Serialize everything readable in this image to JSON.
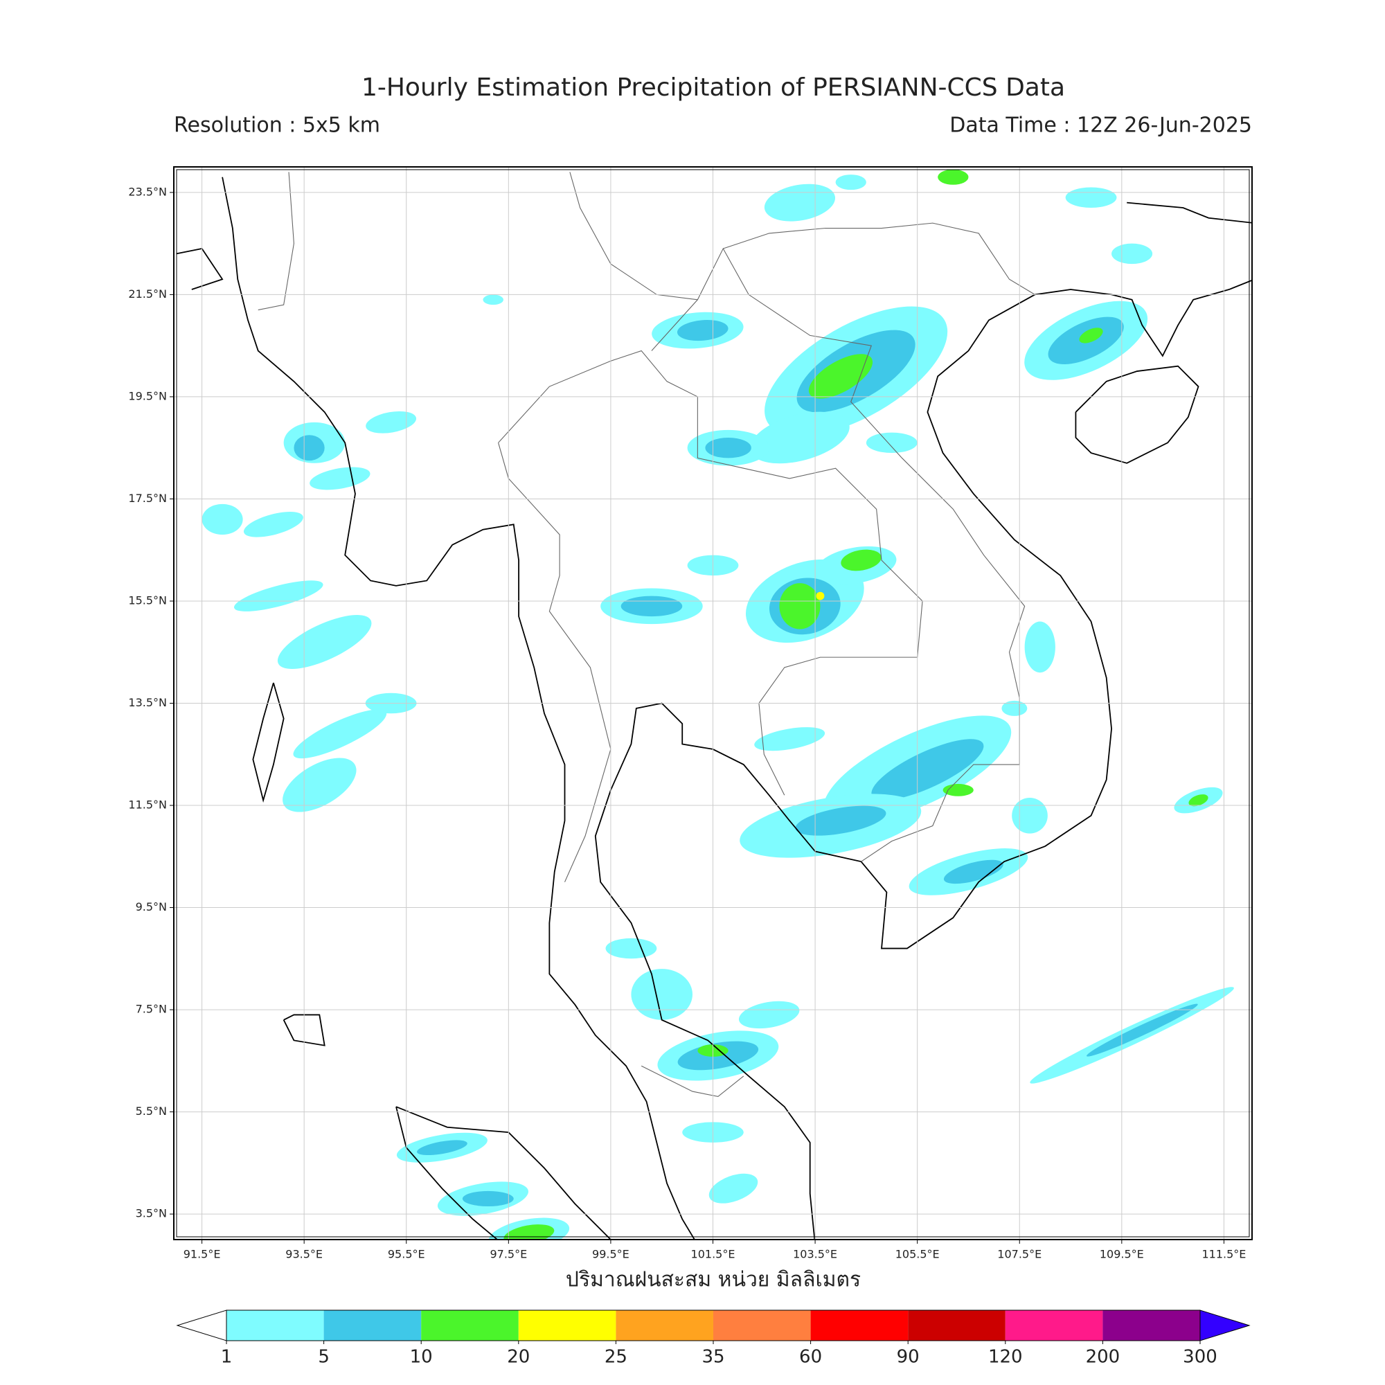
{
  "header": {
    "title": "1-Hourly Estimation Precipitation of PERSIANN-CCS Data",
    "resolution": "Resolution : 5x5 km",
    "data_time": "Data Time : 12Z 26-Jun-2025"
  },
  "map": {
    "lonlim": [
      90.95,
      112.05
    ],
    "latlim": [
      3.0,
      24.0
    ],
    "lon_ticks": [
      {
        "value": 91.5,
        "label": "91.5°E"
      },
      {
        "value": 93.5,
        "label": "93.5°E"
      },
      {
        "value": 95.5,
        "label": "95.5°E"
      },
      {
        "value": 97.5,
        "label": "97.5°E"
      },
      {
        "value": 99.5,
        "label": "99.5°E"
      },
      {
        "value": 101.5,
        "label": "101.5°E"
      },
      {
        "value": 103.5,
        "label": "103.5°E"
      },
      {
        "value": 105.5,
        "label": "105.5°E"
      },
      {
        "value": 107.5,
        "label": "107.5°E"
      },
      {
        "value": 109.5,
        "label": "109.5°E"
      },
      {
        "value": 111.5,
        "label": "111.5°E"
      }
    ],
    "lat_ticks": [
      {
        "value": 23.5,
        "label": "23.5°N"
      },
      {
        "value": 21.5,
        "label": "21.5°N"
      },
      {
        "value": 19.5,
        "label": "19.5°N"
      },
      {
        "value": 17.5,
        "label": "17.5°N"
      },
      {
        "value": 15.5,
        "label": "15.5°N"
      },
      {
        "value": 13.5,
        "label": "13.5°N"
      },
      {
        "value": 11.5,
        "label": "11.5°N"
      },
      {
        "value": 9.5,
        "label": "9.5°N"
      },
      {
        "value": 7.5,
        "label": "7.5°N"
      },
      {
        "value": 5.5,
        "label": "5.5°N"
      },
      {
        "value": 3.5,
        "label": "3.5°N"
      }
    ],
    "xlabel": "ปริมาณฝนสะสม หน่วย มิลลิเมตร"
  },
  "colorbar": {
    "levels": [
      1,
      5,
      10,
      20,
      25,
      35,
      60,
      90,
      120,
      200,
      300
    ],
    "colors": [
      "#7ffcff",
      "#3fc8e8",
      "#4bf52b",
      "#ffff00",
      "#ffa31f",
      "#ff7f3f",
      "#ff0000",
      "#cc0000",
      "#ff1a8a",
      "#8c008c"
    ],
    "under_color": "#ffffff",
    "over_color": "#3300ff"
  }
}
